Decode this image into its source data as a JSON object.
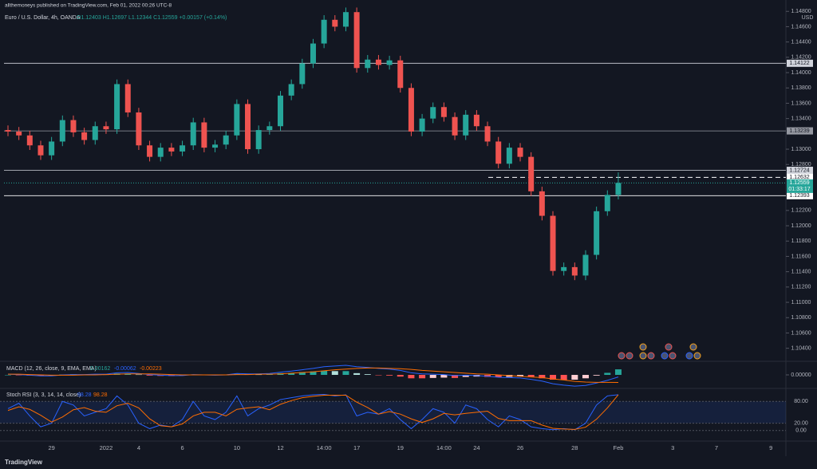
{
  "header": {
    "publisher": "allthemoneys published on TradingView.com, Feb 01, 2022 00:26 UTC-8",
    "symbol": "Euro / U.S. Dollar, 4h, OANDA",
    "ohlc": "O1.12403 H1.12697 L1.12344 C1.12559 +0.00157 (+0.14%)",
    "currency": "USD",
    "brand": "TradingView"
  },
  "chart_data": {
    "type": "candlestick",
    "categories": [
      null,
      null,
      null,
      null,
      "29",
      null,
      null,
      null,
      null,
      "2022",
      null,
      null,
      "4",
      null,
      null,
      null,
      "6",
      null,
      null,
      null,
      null,
      "10",
      null,
      null,
      null,
      "12",
      null,
      null,
      null,
      "14:00",
      null,
      null,
      "17",
      null,
      null,
      null,
      "19",
      null,
      null,
      null,
      "14:00",
      null,
      null,
      "24",
      null,
      null,
      null,
      "26",
      null,
      null,
      null,
      null,
      "28",
      null,
      null,
      null,
      "Feb",
      null,
      null,
      null,
      null,
      "3",
      null,
      null,
      null,
      "7",
      null,
      null,
      null,
      null,
      "9"
    ],
    "open": [
      1.1325,
      1.1323,
      1.1318,
      1.1305,
      1.1292,
      1.131,
      1.1338,
      1.1322,
      1.1312,
      1.133,
      1.1326,
      1.1385,
      1.1348,
      1.1305,
      1.129,
      1.1302,
      1.1297,
      1.1305,
      1.1335,
      1.1302,
      1.1306,
      1.1318,
      1.1359,
      1.13,
      1.1325,
      1.133,
      1.137,
      1.1385,
      1.1412,
      1.1438,
      1.1469,
      1.146,
      1.1479,
      1.1406,
      1.1417,
      1.141,
      1.1416,
      1.138,
      1.1323,
      1.134,
      1.1355,
      1.1342,
      1.1318,
      1.1345,
      1.133,
      1.131,
      1.1281,
      1.1302,
      1.129,
      1.1245,
      1.1213,
      1.1141,
      1.1146,
      1.1135,
      1.1162,
      1.1219,
      1.12403,
      null,
      null,
      null,
      null,
      null,
      null,
      null,
      null,
      null,
      null,
      null,
      null,
      null,
      null
    ],
    "high": [
      1.1331,
      1.1329,
      1.1324,
      1.1311,
      1.1316,
      1.1344,
      1.1344,
      1.1328,
      1.1336,
      1.1336,
      1.1391,
      1.1391,
      1.1354,
      1.1311,
      1.1308,
      1.1308,
      1.1311,
      1.1341,
      1.1341,
      1.1312,
      1.1324,
      1.1365,
      1.1365,
      1.1331,
      1.1336,
      1.1376,
      1.1391,
      1.1418,
      1.1444,
      1.1475,
      1.1475,
      1.1485,
      1.1485,
      1.1423,
      1.1423,
      1.1422,
      1.1422,
      1.1386,
      1.1346,
      1.1361,
      1.1361,
      1.1348,
      1.1351,
      1.1351,
      1.1336,
      1.1316,
      1.1308,
      1.1308,
      1.1296,
      1.1251,
      1.1219,
      1.1152,
      1.1152,
      1.1168,
      1.1225,
      1.12463,
      1.12697,
      null,
      null,
      null,
      null,
      null,
      null,
      null,
      null,
      null,
      null,
      null,
      null,
      null,
      null
    ],
    "low": [
      1.1317,
      1.1312,
      1.1299,
      1.1286,
      1.1286,
      1.1304,
      1.1316,
      1.1306,
      1.1306,
      1.132,
      1.132,
      1.1342,
      1.1299,
      1.1284,
      1.1284,
      1.1291,
      1.1291,
      1.1299,
      1.1296,
      1.1296,
      1.13,
      1.1312,
      1.1294,
      1.1294,
      1.1319,
      1.1324,
      1.1364,
      1.1379,
      1.1406,
      1.1432,
      1.1454,
      1.1454,
      1.14,
      1.14,
      1.1404,
      1.1404,
      1.1374,
      1.1317,
      1.1317,
      1.1334,
      1.1336,
      1.1312,
      1.1312,
      1.1324,
      1.1304,
      1.1275,
      1.1275,
      1.1284,
      1.1239,
      1.1207,
      1.1135,
      1.1135,
      1.1129,
      1.1129,
      1.1156,
      1.1213,
      1.12344,
      null,
      null,
      null,
      null,
      null,
      null,
      null,
      null,
      null,
      null,
      null,
      null,
      null,
      null
    ],
    "close": [
      1.1323,
      1.1318,
      1.1305,
      1.1292,
      1.131,
      1.1338,
      1.1322,
      1.1312,
      1.133,
      1.1326,
      1.1385,
      1.1348,
      1.1305,
      1.129,
      1.1302,
      1.1297,
      1.1305,
      1.1335,
      1.1302,
      1.1306,
      1.1318,
      1.1359,
      1.13,
      1.1325,
      1.133,
      1.137,
      1.1385,
      1.1412,
      1.1438,
      1.1469,
      1.146,
      1.1479,
      1.1406,
      1.1417,
      1.141,
      1.1416,
      1.138,
      1.1323,
      1.134,
      1.1355,
      1.1342,
      1.1318,
      1.1345,
      1.133,
      1.131,
      1.1281,
      1.1302,
      1.129,
      1.1245,
      1.1213,
      1.1141,
      1.1146,
      1.1135,
      1.1162,
      1.1219,
      1.12403,
      1.12559,
      null,
      null,
      null,
      null,
      null,
      null,
      null,
      null,
      null,
      null,
      null,
      null,
      null,
      null
    ],
    "up_color": "#26a69a",
    "down_color": "#ef5350",
    "ylim": [
      1.1024,
      1.14865
    ],
    "yticks": [
      {
        "value": 1.148,
        "label": "1.14800"
      },
      {
        "value": 1.146,
        "label": "1.14600"
      },
      {
        "value": 1.144,
        "label": "1.14400"
      },
      {
        "value": 1.142,
        "label": "1.14200"
      },
      {
        "value": 1.14,
        "label": "1.14000"
      },
      {
        "value": 1.138,
        "label": "1.13800"
      },
      {
        "value": 1.136,
        "label": "1.13600"
      },
      {
        "value": 1.134,
        "label": "1.13400"
      },
      {
        "value": 1.13,
        "label": "1.13000"
      },
      {
        "value": 1.128,
        "label": "1.12800"
      },
      {
        "value": 1.122,
        "label": "1.12200"
      },
      {
        "value": 1.12,
        "label": "1.12000"
      },
      {
        "value": 1.118,
        "label": "1.11800"
      },
      {
        "value": 1.116,
        "label": "1.11600"
      },
      {
        "value": 1.114,
        "label": "1.11400"
      },
      {
        "value": 1.112,
        "label": "1.11200"
      },
      {
        "value": 1.11,
        "label": "1.11000"
      },
      {
        "value": 1.108,
        "label": "1.10800"
      },
      {
        "value": 1.106,
        "label": "1.10600"
      },
      {
        "value": 1.104,
        "label": "1.10400"
      }
    ],
    "hlines": [
      {
        "value": 1.14122,
        "color": "#d1d4dc"
      },
      {
        "value": 1.13239,
        "color": "#9598a1"
      },
      {
        "value": 1.12724,
        "color": "#d1d4dc"
      },
      {
        "value": 1.12393,
        "color": "#ffffff"
      }
    ],
    "dashed_line": 1.12632,
    "last_price": 1.12559,
    "countdown": "01:33:17",
    "macd": {
      "title": "MACD (12, 26, close, 9, EMA, EMA)",
      "ylim": [
        -0.0035,
        0.0035
      ],
      "yticks": [
        {
          "value": 0,
          "label": "0.00000"
        }
      ],
      "macd_color": "#2962ff",
      "signal_color": "#ff6d00",
      "histogram": [
        0,
        -0.0001,
        -0.0002,
        -0.0003,
        -0.0002,
        0.0001,
        0.0002,
        0.0001,
        0.0002,
        0.0001,
        0.0004,
        0.0004,
        0.0001,
        -0.0002,
        -0.0003,
        -0.0003,
        -0.0002,
        0.0001,
        0,
        -0.0001,
        0,
        0.0003,
        0.0002,
        0.0001,
        0.0002,
        0.0005,
        0.0006,
        0.0008,
        0.001,
        0.0012,
        0.0011,
        0.0011,
        0.0005,
        0.0002,
        -0.0001,
        -0.0002,
        -0.0005,
        -0.001,
        -0.001,
        -0.0009,
        -0.0008,
        -0.0009,
        -0.0006,
        -0.0005,
        -0.0006,
        -0.0007,
        -0.0006,
        -0.0005,
        -0.0007,
        -0.001,
        -0.0014,
        -0.0015,
        -0.0014,
        -0.001,
        -0.0002,
        0.0006,
        0.00162,
        null,
        null,
        null,
        null,
        null,
        null,
        null,
        null,
        null,
        null,
        null,
        null,
        null,
        null
      ],
      "macd": [
        0.0002,
        0.0001,
        -0.0001,
        -0.0003,
        -0.0003,
        0.0,
        0.0001,
        0.0001,
        0.0002,
        0.0002,
        0.0006,
        0.0007,
        0.0004,
        0.0001,
        -0.0001,
        -0.0002,
        -0.0002,
        0.0001,
        0.0,
        -0.0001,
        0.0,
        0.0004,
        0.0003,
        0.0003,
        0.0004,
        0.0008,
        0.0011,
        0.0015,
        0.0019,
        0.0024,
        0.0026,
        0.0028,
        0.0024,
        0.0022,
        0.0019,
        0.0017,
        0.0013,
        0.0006,
        0.0003,
        0.0002,
        0.0001,
        -0.0002,
        -0.0001,
        -0.0002,
        -0.0004,
        -0.0007,
        -0.0008,
        -0.0009,
        -0.0013,
        -0.0018,
        -0.0026,
        -0.003,
        -0.0033,
        -0.0031,
        -0.0024,
        -0.0016,
        -0.00062,
        null,
        null,
        null,
        null,
        null,
        null,
        null,
        null,
        null,
        null,
        null,
        null,
        null,
        null
      ],
      "signal": [
        0.0002,
        0.0002,
        0.0001,
        0.0,
        -0.0001,
        -0.0001,
        -0.0001,
        0.0,
        0.0,
        0.0001,
        0.0002,
        0.0003,
        0.0003,
        0.0003,
        0.0002,
        0.0001,
        0.0,
        0.0,
        0.0,
        0.0,
        0.0,
        0.0001,
        0.0001,
        0.0002,
        0.0002,
        0.0003,
        0.0005,
        0.0007,
        0.0009,
        0.0012,
        0.0015,
        0.0017,
        0.0019,
        0.002,
        0.002,
        0.0019,
        0.0018,
        0.0016,
        0.0013,
        0.0011,
        0.0009,
        0.0007,
        0.0005,
        0.0003,
        0.0002,
        0.0,
        -0.0002,
        -0.0004,
        -0.0006,
        -0.0008,
        -0.0012,
        -0.0015,
        -0.0019,
        -0.0021,
        -0.0022,
        -0.0022,
        -0.00223,
        null,
        null,
        null,
        null,
        null,
        null,
        null,
        null,
        null,
        null,
        null,
        null,
        null,
        null
      ]
    },
    "stoch": {
      "title": "Stoch RSI (3, 3, 14, 14, close)",
      "ylim": [
        -27,
        109
      ],
      "yticks": [
        {
          "value": 80,
          "label": "80.00"
        },
        {
          "value": 20,
          "label": "20.00"
        },
        {
          "value": 0,
          "label": "0.00"
        }
      ],
      "k_color": "#2962ff",
      "d_color": "#ff6d00",
      "k": [
        60,
        75,
        40,
        10,
        20,
        80,
        70,
        40,
        50,
        60,
        95,
        70,
        20,
        5,
        15,
        10,
        30,
        80,
        40,
        30,
        50,
        95,
        40,
        60,
        70,
        85,
        90,
        95,
        98,
        99,
        95,
        98,
        40,
        50,
        45,
        60,
        30,
        5,
        30,
        60,
        50,
        20,
        70,
        60,
        30,
        10,
        40,
        30,
        10,
        5,
        2,
        5,
        2,
        20,
        70,
        95,
        98.28,
        null,
        null,
        null,
        null,
        null,
        null,
        null,
        null,
        null,
        null,
        null,
        null,
        null,
        null
      ],
      "d": [
        55,
        65,
        58,
        42,
        23,
        37,
        57,
        63,
        53,
        50,
        68,
        75,
        62,
        32,
        13,
        10,
        18,
        40,
        50,
        50,
        40,
        58,
        62,
        65,
        57,
        72,
        82,
        90,
        94,
        97,
        97,
        97,
        78,
        63,
        45,
        52,
        45,
        32,
        22,
        32,
        47,
        43,
        47,
        50,
        53,
        33,
        27,
        27,
        27,
        15,
        6,
        4,
        3,
        9,
        31,
        62,
        98.28,
        null,
        null,
        null,
        null,
        null,
        null,
        null,
        null,
        null,
        null,
        null,
        null,
        null,
        null
      ]
    }
  }
}
